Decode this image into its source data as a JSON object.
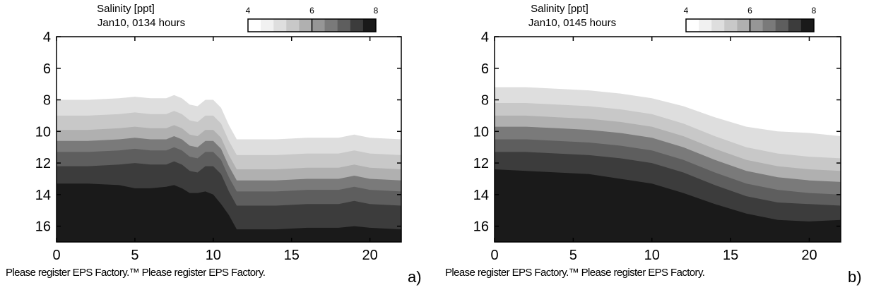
{
  "figure": {
    "panels": [
      {
        "id": "a",
        "header_line1": "Salinity [ppt]",
        "header_line2": "Jan10, 0134 hours",
        "footer_text": "Please register EPS Factory.™  Please register EPS Factory.",
        "panel_label": "a)"
      },
      {
        "id": "b",
        "header_line1": "Salinity [ppt]",
        "header_line2": "Jan10, 0145 hours",
        "footer_text": "Please register EPS Factory.™  Please register EPS Factory.",
        "panel_label": "b)"
      }
    ]
  },
  "chart_data": [
    {
      "type": "heatmap",
      "title": "Salinity [ppt]",
      "subtitle": "Jan10, 0134 hours",
      "x": [
        0,
        2,
        4,
        5,
        6,
        7,
        7.5,
        8,
        8.5,
        9,
        9.5,
        10,
        10.5,
        11,
        11.5,
        12,
        14,
        16,
        18,
        19,
        20,
        22
      ],
      "xlim": [
        0,
        22
      ],
      "ylim": [
        4,
        17
      ],
      "y_inverted": true,
      "xticks": [
        0,
        5,
        10,
        15,
        20
      ],
      "yticks": [
        4,
        6,
        8,
        10,
        12,
        14,
        16
      ],
      "colorbar": {
        "ticks": [
          4,
          6,
          8
        ],
        "range": [
          4,
          8
        ],
        "levels": 8,
        "colors": [
          "#ffffff",
          "#f1f1f1",
          "#dedede",
          "#c8c8c8",
          "#b0b0b0",
          "#969696",
          "#7a7a7a",
          "#5e5e5e",
          "#3c3c3c",
          "#1a1a1a"
        ]
      },
      "contours": [
        {
          "level": 4.5,
          "depth": [
            8.0,
            8.0,
            7.9,
            7.8,
            7.9,
            7.9,
            7.7,
            7.9,
            8.3,
            8.4,
            8.0,
            8.0,
            8.5,
            9.6,
            10.5,
            10.5,
            10.5,
            10.4,
            10.4,
            10.2,
            10.4,
            10.5
          ]
        },
        {
          "level": 5.0,
          "depth": [
            9.0,
            9.0,
            8.9,
            8.8,
            8.9,
            8.9,
            8.7,
            8.9,
            9.3,
            9.4,
            9.0,
            9.0,
            9.5,
            10.6,
            11.5,
            11.5,
            11.5,
            11.4,
            11.4,
            11.2,
            11.4,
            11.5
          ]
        },
        {
          "level": 5.5,
          "depth": [
            9.9,
            9.9,
            9.8,
            9.7,
            9.8,
            9.8,
            9.6,
            9.8,
            10.2,
            10.3,
            9.9,
            9.9,
            10.4,
            11.5,
            12.4,
            12.4,
            12.4,
            12.3,
            12.3,
            12.1,
            12.3,
            12.4
          ]
        },
        {
          "level": 6.0,
          "depth": [
            10.6,
            10.6,
            10.5,
            10.4,
            10.5,
            10.5,
            10.3,
            10.5,
            10.9,
            11.0,
            10.6,
            10.6,
            11.1,
            12.2,
            13.1,
            13.1,
            13.1,
            13.0,
            13.0,
            12.8,
            13.0,
            13.1
          ]
        },
        {
          "level": 6.5,
          "depth": [
            11.3,
            11.3,
            11.2,
            11.1,
            11.2,
            11.2,
            11.0,
            11.2,
            11.6,
            11.7,
            11.3,
            11.3,
            11.8,
            12.9,
            13.8,
            13.8,
            13.8,
            13.7,
            13.7,
            13.5,
            13.7,
            13.8
          ]
        },
        {
          "level": 7.0,
          "depth": [
            12.2,
            12.2,
            12.1,
            12.0,
            12.1,
            12.1,
            11.9,
            12.1,
            12.5,
            12.6,
            12.2,
            12.2,
            12.7,
            13.8,
            14.7,
            14.7,
            14.7,
            14.6,
            14.6,
            14.4,
            14.6,
            14.7
          ]
        },
        {
          "level": 7.5,
          "depth": [
            13.3,
            13.3,
            13.4,
            13.6,
            13.6,
            13.5,
            13.4,
            13.6,
            13.9,
            13.9,
            13.8,
            14.0,
            14.6,
            15.3,
            16.2,
            16.2,
            16.2,
            16.1,
            16.1,
            16.0,
            16.1,
            16.2
          ]
        }
      ]
    },
    {
      "type": "heatmap",
      "title": "Salinity [ppt]",
      "subtitle": "Jan10, 0145 hours",
      "x": [
        0,
        2,
        4,
        6,
        8,
        10,
        12,
        14,
        16,
        18,
        20,
        22
      ],
      "xlim": [
        0,
        22
      ],
      "ylim": [
        4,
        17
      ],
      "y_inverted": true,
      "xticks": [
        0,
        5,
        10,
        15,
        20
      ],
      "yticks": [
        4,
        6,
        8,
        10,
        12,
        14,
        16
      ],
      "colorbar": {
        "ticks": [
          4,
          6,
          8
        ],
        "range": [
          4,
          8
        ],
        "levels": 8,
        "colors": [
          "#ffffff",
          "#f1f1f1",
          "#dedede",
          "#c8c8c8",
          "#b0b0b0",
          "#969696",
          "#7a7a7a",
          "#5e5e5e",
          "#3c3c3c",
          "#1a1a1a"
        ]
      },
      "contours": [
        {
          "level": 4.5,
          "depth": [
            7.2,
            7.2,
            7.3,
            7.4,
            7.6,
            7.9,
            8.4,
            9.1,
            9.7,
            10.0,
            10.1,
            10.3
          ]
        },
        {
          "level": 5.0,
          "depth": [
            8.2,
            8.2,
            8.3,
            8.4,
            8.6,
            8.9,
            9.5,
            10.3,
            11.0,
            11.4,
            11.6,
            11.7
          ]
        },
        {
          "level": 5.5,
          "depth": [
            9.0,
            9.0,
            9.1,
            9.2,
            9.4,
            9.7,
            10.3,
            11.1,
            11.8,
            12.2,
            12.4,
            12.5
          ]
        },
        {
          "level": 6.0,
          "depth": [
            9.7,
            9.7,
            9.8,
            9.9,
            10.1,
            10.4,
            11.0,
            11.8,
            12.5,
            12.9,
            13.1,
            13.2
          ]
        },
        {
          "level": 6.5,
          "depth": [
            10.5,
            10.5,
            10.6,
            10.7,
            10.9,
            11.2,
            11.8,
            12.6,
            13.3,
            13.7,
            13.9,
            14.0
          ]
        },
        {
          "level": 7.0,
          "depth": [
            11.3,
            11.3,
            11.4,
            11.5,
            11.7,
            12.0,
            12.6,
            13.4,
            14.1,
            14.5,
            14.6,
            14.7
          ]
        },
        {
          "level": 7.5,
          "depth": [
            12.4,
            12.5,
            12.6,
            12.7,
            13.0,
            13.3,
            13.9,
            14.6,
            15.2,
            15.6,
            15.7,
            15.6
          ]
        }
      ]
    }
  ]
}
